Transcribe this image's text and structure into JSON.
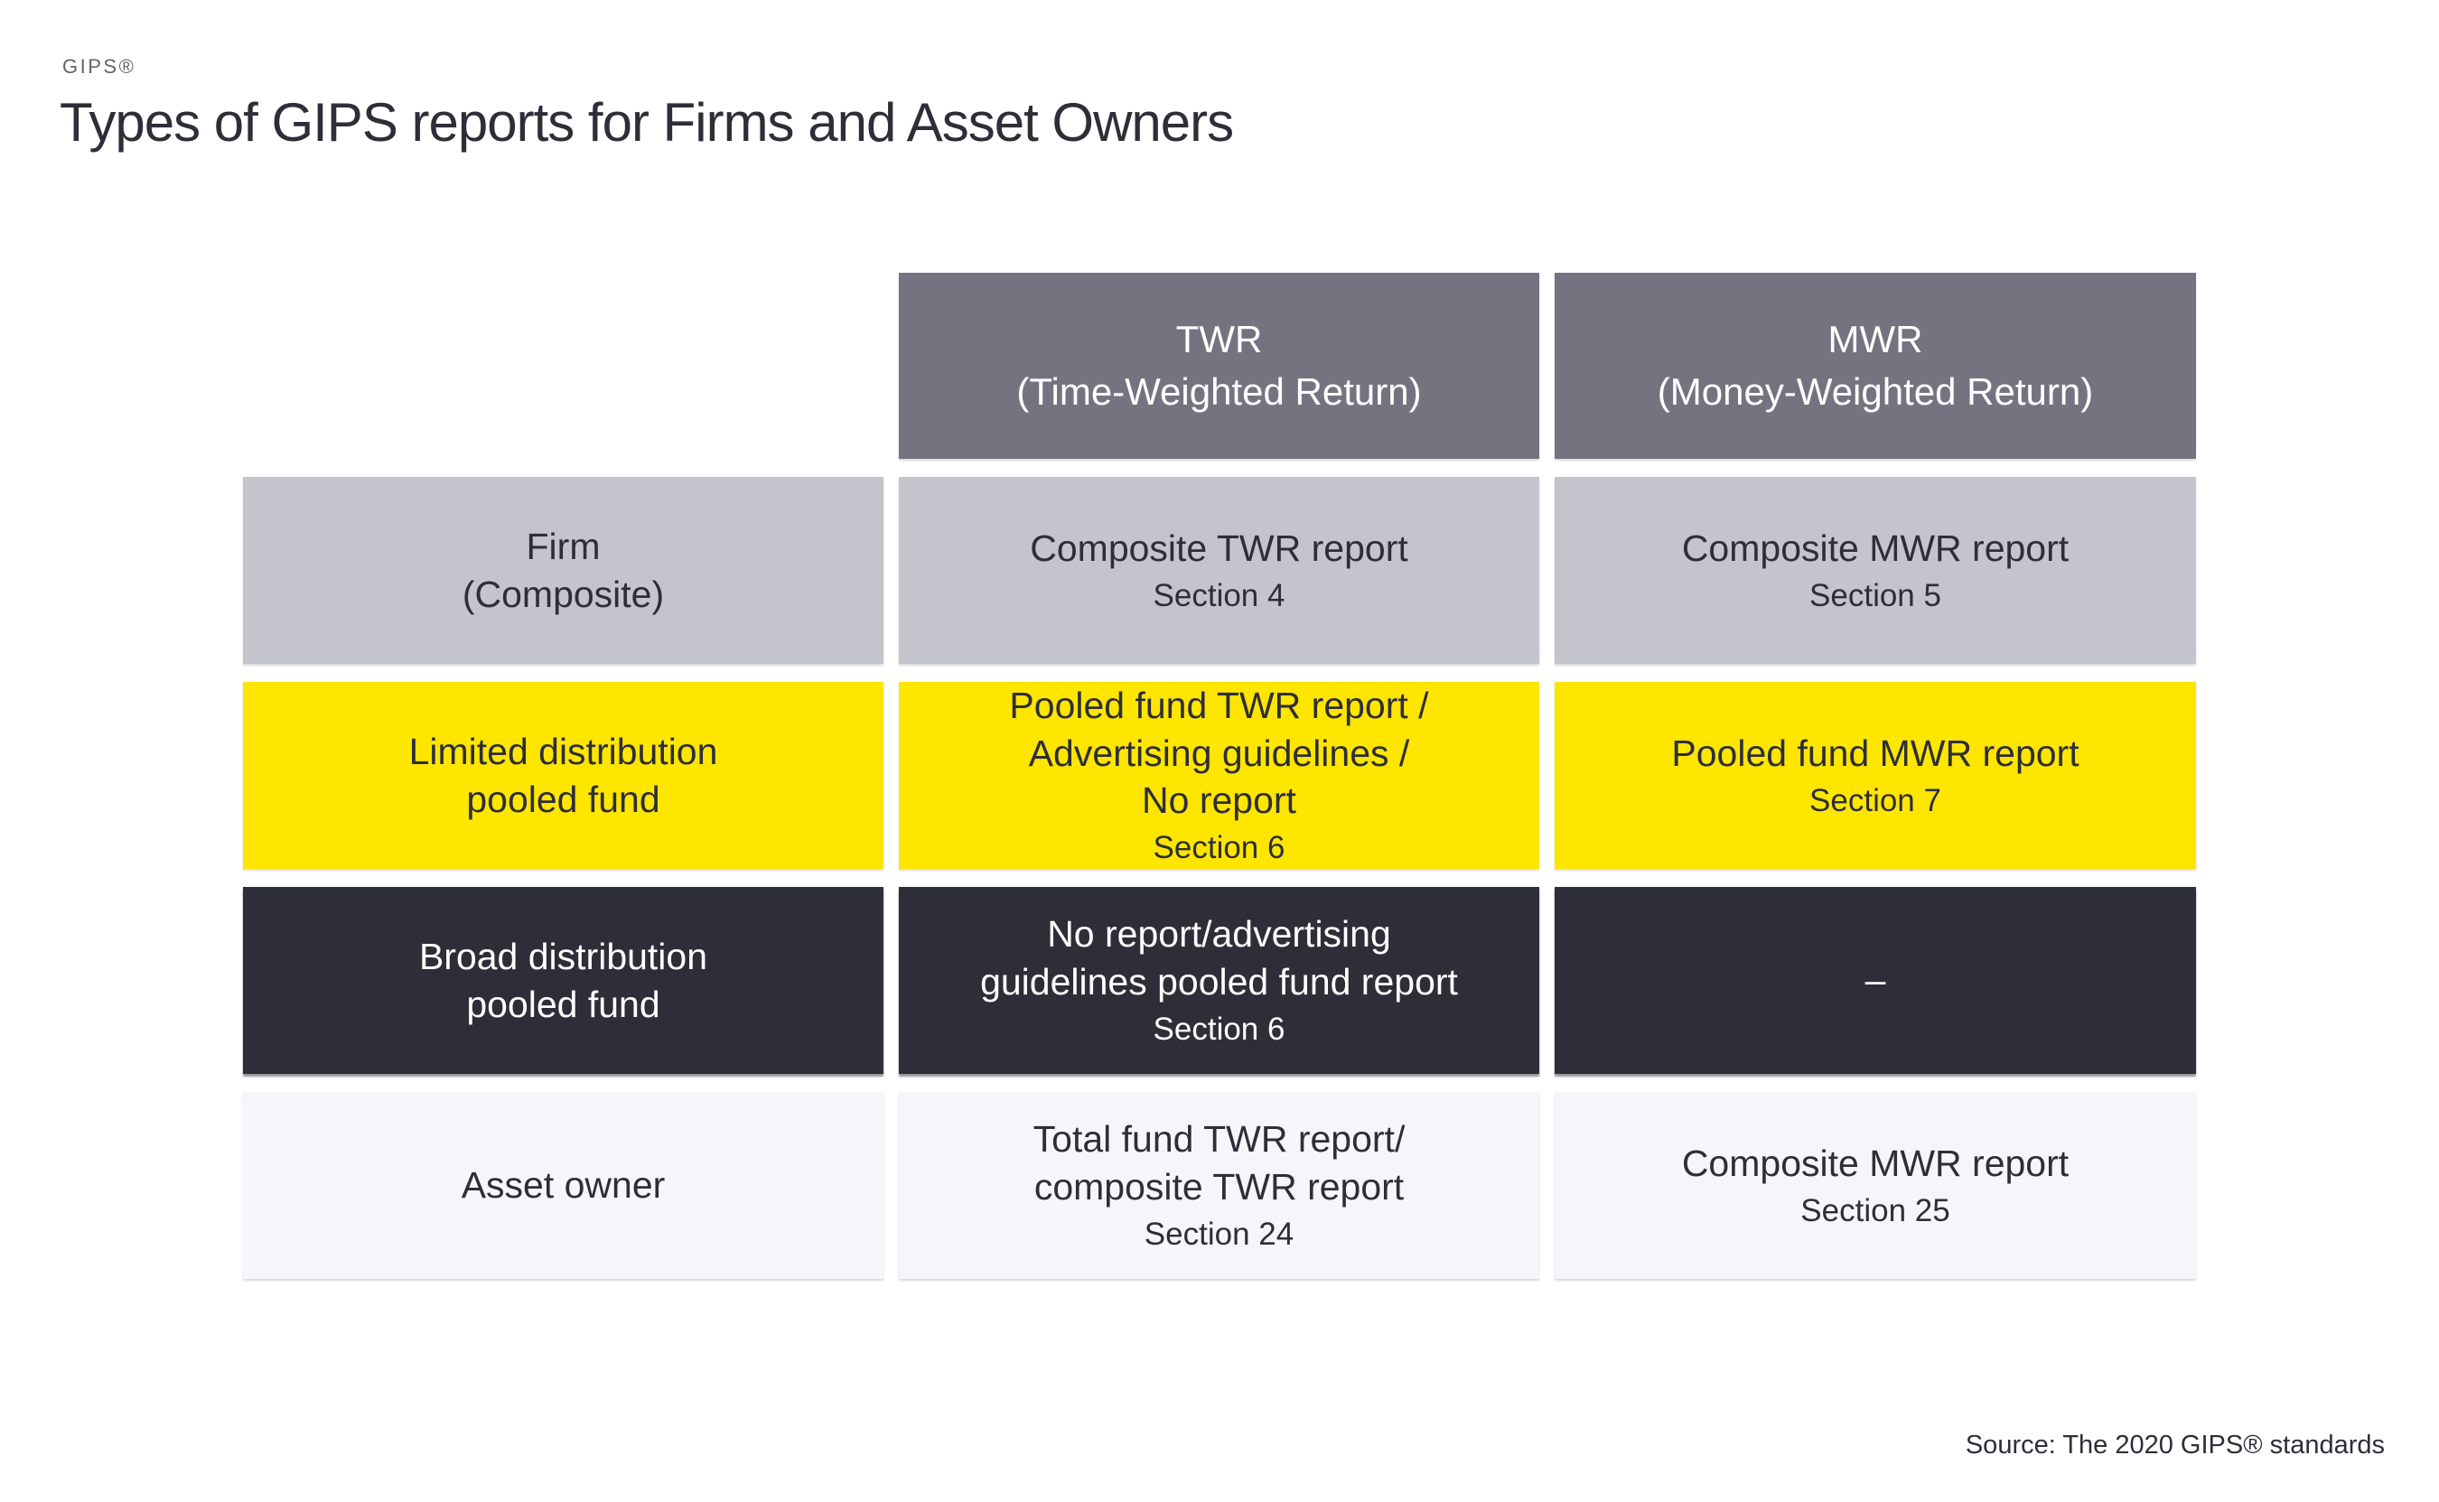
{
  "page": {
    "brand": "GIPS®",
    "title": "Types of GIPS reports for Firms and Asset Owners",
    "source": "Source: The 2020 GIPS® standards"
  },
  "colors": {
    "header_gray": "#747480",
    "light_gray": "#C4C4CD",
    "accent_yellow": "#FFE600",
    "dark": "#2E2E38",
    "off_white": "#F6F6FA",
    "text_dark": "#2E2E38",
    "text_light": "#FFFFFF",
    "brand_label": "#63636E"
  },
  "table": {
    "column_headers": [
      {
        "lines": [
          "TWR",
          "(Time-Weighted Return)"
        ]
      },
      {
        "lines": [
          "MWR",
          "(Money-Weighted Return)"
        ]
      }
    ],
    "rows": [
      {
        "label_lines": [
          "Firm",
          "(Composite)"
        ],
        "cells": [
          {
            "lines": [
              "Composite TWR report"
            ],
            "section": "Section 4"
          },
          {
            "lines": [
              "Composite MWR report"
            ],
            "section": "Section 5"
          }
        ]
      },
      {
        "label_lines": [
          "Limited distribution",
          "pooled fund"
        ],
        "cells": [
          {
            "lines": [
              "Pooled fund TWR report /",
              "Advertising guidelines /",
              "No report"
            ],
            "section": "Section 6"
          },
          {
            "lines": [
              "Pooled fund MWR report"
            ],
            "section": "Section 7"
          }
        ]
      },
      {
        "label_lines": [
          "Broad distribution",
          "pooled fund"
        ],
        "cells": [
          {
            "lines": [
              "No report/advertising",
              "guidelines pooled fund report"
            ],
            "section": "Section 6"
          },
          {
            "lines": [
              "–"
            ],
            "section": ""
          }
        ]
      },
      {
        "label_lines": [
          "Asset owner"
        ],
        "cells": [
          {
            "lines": [
              "Total fund TWR report/",
              "composite TWR report"
            ],
            "section": "Section 24"
          },
          {
            "lines": [
              "Composite MWR report"
            ],
            "section": "Section 25"
          }
        ]
      }
    ]
  }
}
